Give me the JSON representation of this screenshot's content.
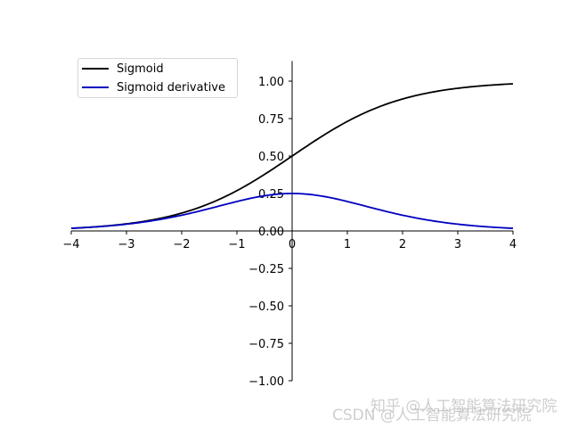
{
  "chart_data": {
    "type": "line",
    "title": "",
    "xlabel": "",
    "ylabel": "",
    "xlim": [
      -4,
      4
    ],
    "ylim": [
      -1.0,
      1.2
    ],
    "grid": false,
    "legend_position": "upper left",
    "x_ticks": [
      "−4",
      "−3",
      "−2",
      "−1",
      "0",
      "1",
      "2",
      "3",
      "4"
    ],
    "y_ticks": [
      "1.00",
      "0.75",
      "0.50",
      "0.25",
      "0.00",
      "−0.25",
      "−0.50",
      "−0.75",
      "−1.00"
    ],
    "x": [
      -4,
      -3,
      -2,
      -1,
      0,
      1,
      2,
      3,
      4
    ],
    "series": [
      {
        "name": "Sigmoid",
        "color": "#000000",
        "values": [
          0.018,
          0.047,
          0.119,
          0.269,
          0.5,
          0.731,
          0.881,
          0.953,
          0.982
        ]
      },
      {
        "name": "Sigmoid derivative",
        "color": "#0000c0",
        "values": [
          0.018,
          0.045,
          0.105,
          0.197,
          0.25,
          0.197,
          0.105,
          0.045,
          0.018
        ]
      }
    ]
  },
  "legend": {
    "items": [
      {
        "label": "Sigmoid",
        "color": "#000000"
      },
      {
        "label": "Sigmoid derivative",
        "color": "#0000c0"
      }
    ]
  },
  "watermark": {
    "line1": "知乎 @人工智能算法研究院",
    "line2": "CSDN @人工智能算法研究院"
  }
}
